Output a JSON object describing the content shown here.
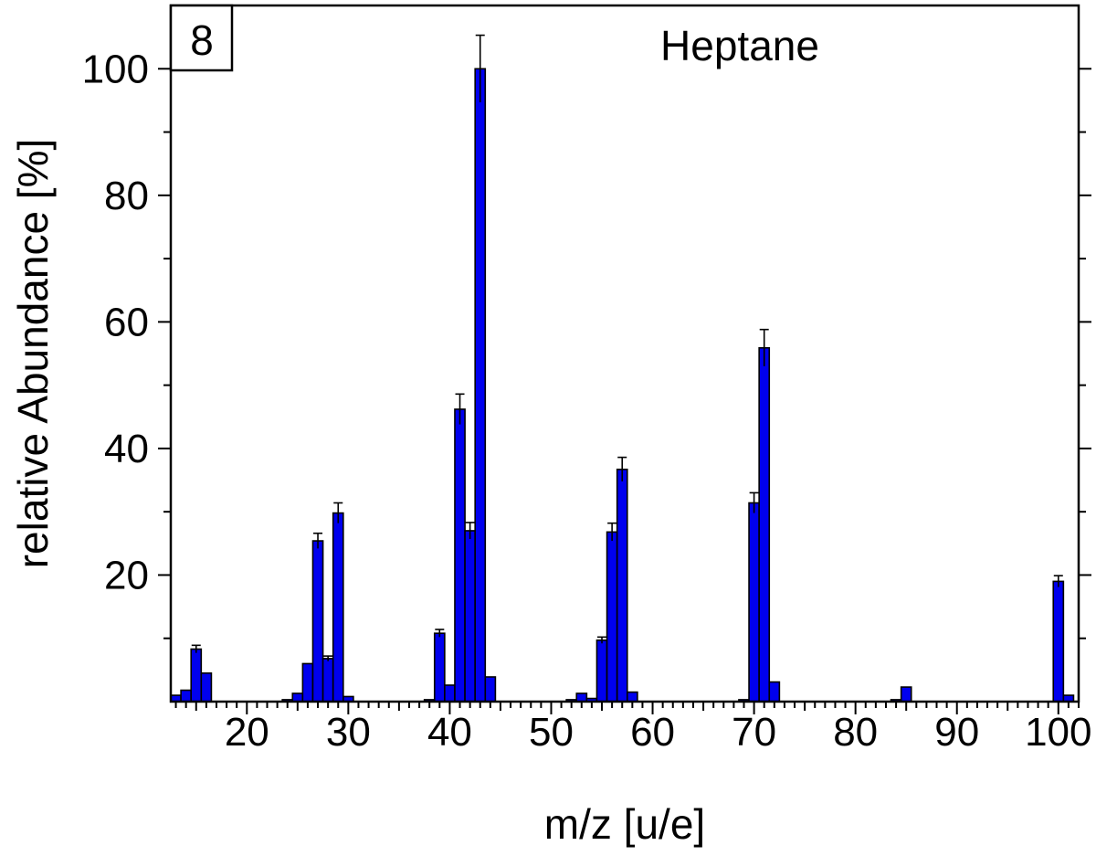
{
  "panel_label": "8",
  "chart_data": {
    "type": "bar",
    "title": "Heptane",
    "xlabel": "m/z [u/e]",
    "ylabel": "relative Abundance [%]",
    "xlim": [
      12.5,
      102.0
    ],
    "ylim": [
      0,
      110
    ],
    "x_ticks": [
      20,
      30,
      40,
      50,
      60,
      70,
      80,
      90,
      100
    ],
    "x_tick_labels": [
      "20",
      "30",
      "40",
      "50",
      "60",
      "70",
      "80",
      "90",
      "100"
    ],
    "y_ticks": [
      20,
      40,
      60,
      80,
      100
    ],
    "y_tick_labels": [
      "20",
      "40",
      "60",
      "80",
      "100"
    ],
    "bar_color": "#0000ee",
    "bars": [
      {
        "x": 13,
        "y": 1.0
      },
      {
        "x": 14,
        "y": 1.8
      },
      {
        "x": 15,
        "y": 8.3,
        "err": 0.6
      },
      {
        "x": 16,
        "y": 4.5
      },
      {
        "x": 24,
        "y": 0.3
      },
      {
        "x": 25,
        "y": 1.3
      },
      {
        "x": 26,
        "y": 6.0
      },
      {
        "x": 27,
        "y": 25.4,
        "err": 1.2
      },
      {
        "x": 28,
        "y": 6.8,
        "err": 0.4
      },
      {
        "x": 29,
        "y": 29.8,
        "err": 1.6
      },
      {
        "x": 30,
        "y": 0.8
      },
      {
        "x": 38,
        "y": 0.3
      },
      {
        "x": 39,
        "y": 10.8,
        "err": 0.6
      },
      {
        "x": 40,
        "y": 2.6
      },
      {
        "x": 41,
        "y": 46.2,
        "err": 2.4
      },
      {
        "x": 42,
        "y": 27.0,
        "err": 1.3
      },
      {
        "x": 43,
        "y": 100.0,
        "err": 5.3
      },
      {
        "x": 44,
        "y": 3.9
      },
      {
        "x": 52,
        "y": 0.3
      },
      {
        "x": 53,
        "y": 1.3
      },
      {
        "x": 54,
        "y": 0.5
      },
      {
        "x": 55,
        "y": 9.7,
        "err": 0.5
      },
      {
        "x": 56,
        "y": 26.8,
        "err": 1.4
      },
      {
        "x": 57,
        "y": 36.7,
        "err": 1.9
      },
      {
        "x": 58,
        "y": 1.5
      },
      {
        "x": 69,
        "y": 0.3
      },
      {
        "x": 70,
        "y": 31.4,
        "err": 1.6
      },
      {
        "x": 71,
        "y": 55.9,
        "err": 2.9
      },
      {
        "x": 72,
        "y": 3.1
      },
      {
        "x": 84,
        "y": 0.3
      },
      {
        "x": 85,
        "y": 2.3
      },
      {
        "x": 100,
        "y": 19.0,
        "err": 0.9
      },
      {
        "x": 101,
        "y": 1.0
      }
    ]
  }
}
